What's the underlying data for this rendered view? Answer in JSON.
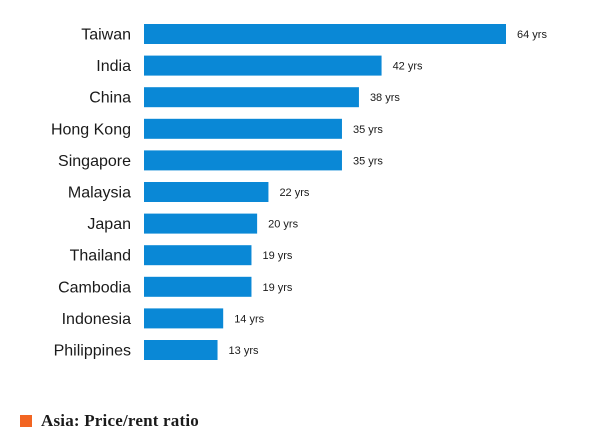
{
  "chart_data": {
    "type": "bar",
    "orientation": "horizontal",
    "title": "Asia: Price/rent ratio",
    "xlabel": "",
    "ylabel": "",
    "categories": [
      "Taiwan",
      "India",
      "China",
      "Hong Kong",
      "Singapore",
      "Malaysia",
      "Japan",
      "Thailand",
      "Cambodia",
      "Indonesia",
      "Philippines"
    ],
    "values": [
      64,
      42,
      38,
      35,
      35,
      22,
      20,
      19,
      19,
      14,
      13
    ],
    "value_labels": [
      "64 yrs",
      "42 yrs",
      "38 yrs",
      "35 yrs",
      "35 yrs",
      "22 yrs",
      "20 yrs",
      "19 yrs",
      "19 yrs",
      "14 yrs",
      "13 yrs"
    ],
    "unit": "yrs",
    "xlim": [
      0,
      64
    ],
    "grid": false,
    "legend": false
  },
  "colors": {
    "bar": "#0a88d6",
    "title_marker": "#f26522",
    "text": "#1a1a1a"
  }
}
